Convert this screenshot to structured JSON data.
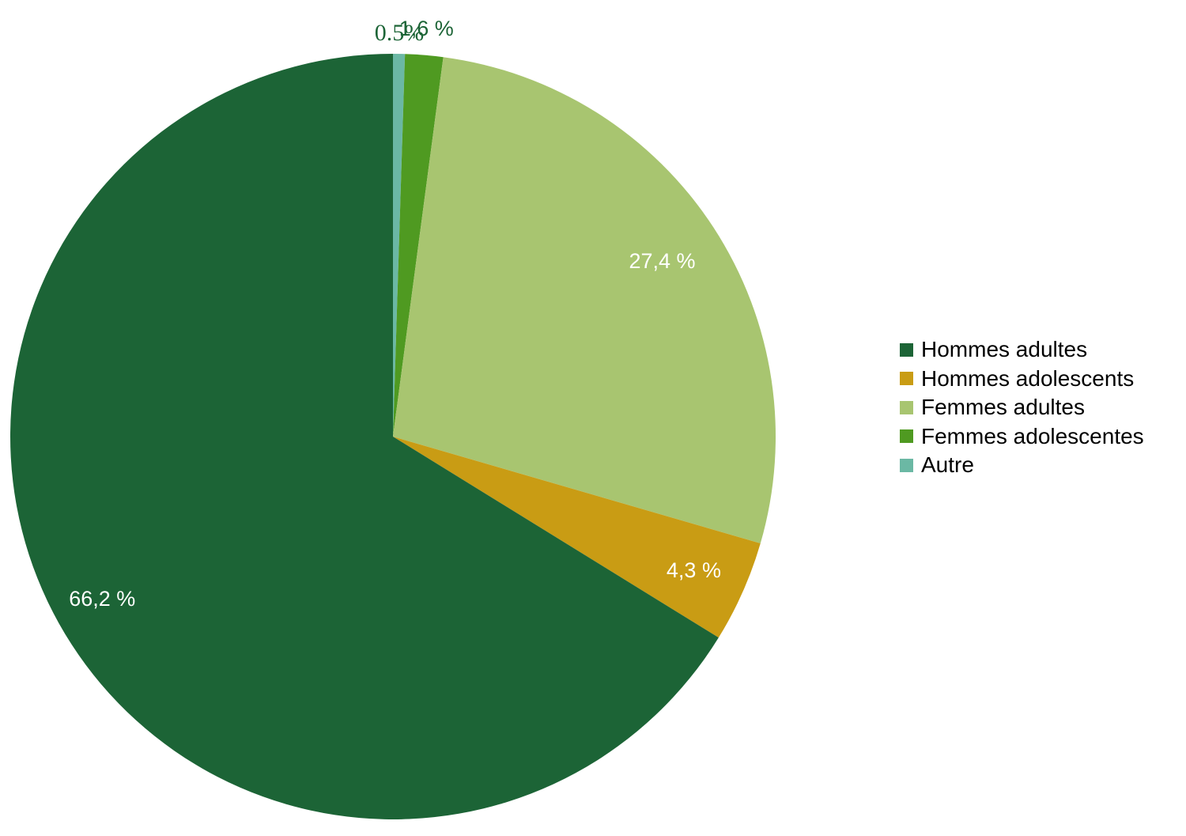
{
  "chart_data": {
    "type": "pie",
    "title": "",
    "legend_position": "right",
    "slices": [
      {
        "label": "Hommes adultes",
        "value": 66.2,
        "value_label": "66,2 %",
        "color": "#1c6436",
        "label_color": "#ffffff"
      },
      {
        "label": "Hommes adolescents",
        "value": 4.3,
        "value_label": "4,3 %",
        "color": "#c99c14",
        "label_color": "#ffffff"
      },
      {
        "label": "Femmes adultes",
        "value": 27.4,
        "value_label": "27,4 %",
        "color": "#a8c570",
        "label_color": "#ffffff"
      },
      {
        "label": "Femmes adolescentes",
        "value": 1.6,
        "value_label": "1,6 %",
        "color": "#4f9a21",
        "label_color": "#1c6436"
      },
      {
        "label": "Autre",
        "value": 0.5,
        "value_label": "0.5%",
        "color": "#6bb8a4",
        "label_color": "#1c6436"
      }
    ]
  }
}
